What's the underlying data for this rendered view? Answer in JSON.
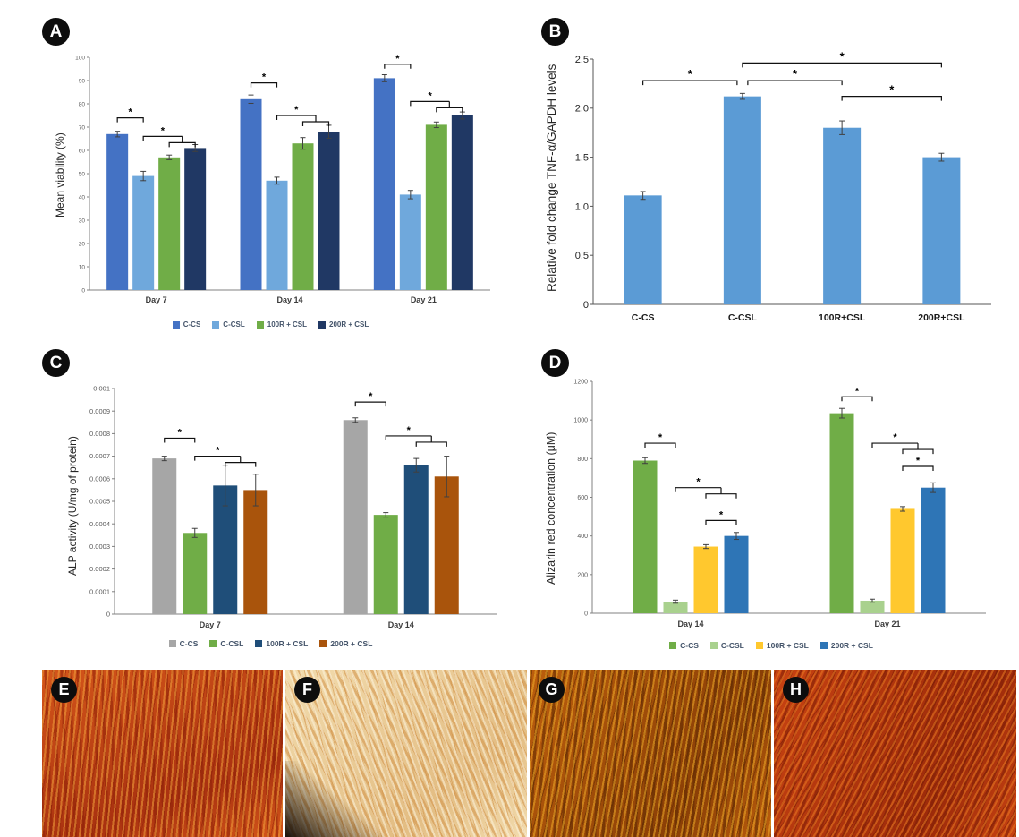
{
  "figure": {
    "panels": [
      {
        "id": "A",
        "badge": "A"
      },
      {
        "id": "B",
        "badge": "B"
      },
      {
        "id": "C",
        "badge": "C"
      },
      {
        "id": "D",
        "badge": "D"
      }
    ]
  },
  "chart_data": [
    {
      "type": "bar",
      "panel": "A",
      "ylabel": "Mean viability (%)",
      "xlabel": "",
      "ylim": [
        0,
        100
      ],
      "ytick_values": [
        0,
        10,
        20,
        30,
        40,
        50,
        60,
        70,
        80,
        90,
        100
      ],
      "ytick_labels": [
        "0",
        "10",
        "20",
        "30",
        "40",
        "50",
        "60",
        "70",
        "80",
        "90",
        "100"
      ],
      "categories": [
        "Day 7",
        "Day 14",
        "Day 21"
      ],
      "series": [
        {
          "name": "C-CS",
          "color": "#4472C4",
          "values": [
            67,
            82,
            91
          ],
          "errors": [
            1.2,
            1.8,
            1.5
          ]
        },
        {
          "name": "C-CSL",
          "color": "#6FA8DC",
          "values": [
            49,
            47,
            41
          ],
          "errors": [
            2.0,
            1.5,
            1.8
          ]
        },
        {
          "name": "100R + CSL",
          "color": "#70AD47",
          "values": [
            57,
            63,
            71
          ],
          "errors": [
            1.0,
            2.5,
            1.2
          ]
        },
        {
          "name": "200R + CSL",
          "color": "#203864",
          "values": [
            61,
            68,
            75
          ],
          "errors": [
            1.5,
            2.8,
            1.5
          ]
        }
      ],
      "annotations": [
        {
          "group": 0,
          "from": 0,
          "to": 1,
          "y": 74,
          "label": "*"
        },
        {
          "group": 0,
          "from": 1,
          "to": [
            2,
            3
          ],
          "y": 66,
          "label": "*"
        },
        {
          "group": 1,
          "from": 0,
          "to": 1,
          "y": 89,
          "label": "*"
        },
        {
          "group": 1,
          "from": 1,
          "to": [
            2,
            3
          ],
          "y": 75,
          "label": "*"
        },
        {
          "group": 2,
          "from": 0,
          "to": 1,
          "y": 97,
          "label": "*"
        },
        {
          "group": 2,
          "from": 1,
          "to": [
            2,
            3
          ],
          "y": 81,
          "label": "*"
        }
      ],
      "legend_position": "bottom",
      "grid": false
    },
    {
      "type": "bar",
      "panel": "B",
      "ylabel": "Relative fold change TNF-α/GAPDH levels",
      "xlabel": "",
      "ylim": [
        0,
        2.5
      ],
      "ytick_values": [
        0,
        0.5,
        1,
        1.5,
        2,
        2.5
      ],
      "ytick_labels": [
        "0",
        "0.5",
        "1.0",
        "1.5",
        "2.0",
        "2.5"
      ],
      "categories": [
        "C-CS",
        "C-CSL",
        "100R+CSL",
        "200R+CSL"
      ],
      "series": [
        {
          "name": "",
          "color": "#5B9BD5",
          "values": [
            1.11,
            2.12,
            1.8,
            1.5
          ],
          "errors": [
            0.04,
            0.03,
            0.07,
            0.04
          ]
        }
      ],
      "annotations": [
        {
          "group": -1,
          "from": 0,
          "to": 1,
          "y": 2.28,
          "label": "*",
          "dx2": -6
        },
        {
          "group": -1,
          "from": 1,
          "to": 2,
          "y": 2.28,
          "label": "*",
          "dx1": 6
        },
        {
          "group": -1,
          "from": 1,
          "to": 3,
          "y": 2.46,
          "label": "*"
        },
        {
          "group": -1,
          "from": 2,
          "to": 3,
          "y": 2.12,
          "label": "*"
        }
      ],
      "legend_position": "none",
      "grid": false
    },
    {
      "type": "bar",
      "panel": "C",
      "ylabel": "ALP activity (U/mg of protein)",
      "xlabel": "",
      "ylim": [
        0,
        0.001
      ],
      "ytick_values": [
        0,
        0.0001,
        0.0002,
        0.0003,
        0.0004,
        0.0005,
        0.0006,
        0.0007,
        0.0008,
        0.0009,
        0.001
      ],
      "ytick_labels": [
        "0",
        "0.0001",
        "0.0002",
        "0.0003",
        "0.0004",
        "0.0005",
        "0.0006",
        "0.0007",
        "0.0008",
        "0.0009",
        "0.001"
      ],
      "categories": [
        "Day 7",
        "Day 14"
      ],
      "series": [
        {
          "name": "C-CS",
          "color": "#A6A6A6",
          "values": [
            0.00069,
            0.00086
          ],
          "errors": [
            1e-05,
            1e-05
          ]
        },
        {
          "name": "C-CSL",
          "color": "#70AD47",
          "values": [
            0.00036,
            0.00044
          ],
          "errors": [
            2e-05,
            1e-05
          ]
        },
        {
          "name": "100R + CSL",
          "color": "#1F4E79",
          "values": [
            0.00057,
            0.00066
          ],
          "errors": [
            9e-05,
            3e-05
          ]
        },
        {
          "name": "200R + CSL",
          "color": "#A9540C",
          "values": [
            0.00055,
            0.00061
          ],
          "errors": [
            7e-05,
            9e-05
          ]
        }
      ],
      "annotations": [
        {
          "group": 0,
          "from": 0,
          "to": 1,
          "y": 0.00078,
          "label": "*"
        },
        {
          "group": 0,
          "from": 1,
          "to": [
            2,
            3
          ],
          "y": 0.0007,
          "label": "*"
        },
        {
          "group": 1,
          "from": 0,
          "to": 1,
          "y": 0.00094,
          "label": "*"
        },
        {
          "group": 1,
          "from": 1,
          "to": [
            2,
            3
          ],
          "y": 0.00079,
          "label": "*"
        }
      ],
      "legend_position": "bottom",
      "grid": false
    },
    {
      "type": "bar",
      "panel": "D",
      "ylabel": "Alizarin red concentration (μM)",
      "xlabel": "",
      "ylim": [
        0,
        1200
      ],
      "ytick_values": [
        0,
        200,
        400,
        600,
        800,
        1000,
        1200
      ],
      "ytick_labels": [
        "0",
        "200",
        "400",
        "600",
        "800",
        "1000",
        "1200"
      ],
      "categories": [
        "Day 14",
        "Day 21"
      ],
      "series": [
        {
          "name": "C-CS",
          "color": "#70AD47",
          "values": [
            790,
            1035
          ],
          "errors": [
            15,
            25
          ]
        },
        {
          "name": "C-CSL",
          "color": "#A9D18E",
          "values": [
            60,
            65
          ],
          "errors": [
            8,
            8
          ]
        },
        {
          "name": "100R + CSL",
          "color": "#FFC82E",
          "values": [
            345,
            540
          ],
          "errors": [
            10,
            12
          ]
        },
        {
          "name": "200R + CSL",
          "color": "#2E75B6",
          "values": [
            400,
            650
          ],
          "errors": [
            18,
            25
          ]
        }
      ],
      "annotations": [
        {
          "group": 0,
          "from": 0,
          "to": 1,
          "y": 880,
          "label": "*"
        },
        {
          "group": 0,
          "from": 1,
          "to": [
            2,
            3
          ],
          "y": 650,
          "label": "*"
        },
        {
          "group": 0,
          "from": 2,
          "to": 3,
          "y": 480,
          "label": "*"
        },
        {
          "group": 1,
          "from": 0,
          "to": 1,
          "y": 1120,
          "label": "*"
        },
        {
          "group": 1,
          "from": 1,
          "to": [
            2,
            3
          ],
          "y": 880,
          "label": "*"
        },
        {
          "group": 1,
          "from": 2,
          "to": 3,
          "y": 760,
          "label": "*"
        }
      ],
      "legend_position": "bottom",
      "grid": false
    }
  ],
  "micrographs": [
    {
      "id": "E",
      "badge": "E",
      "palette": {
        "base": "#d4561a",
        "deep": "#a93110",
        "streak": "#8f2208",
        "highlight": "#f0a13c"
      }
    },
    {
      "id": "F",
      "badge": "F",
      "palette": {
        "base": "#f2dcae",
        "deep": "#e3bd83",
        "streak": "#d29349",
        "highlight": "#fdf4dd"
      }
    },
    {
      "id": "G",
      "badge": "G",
      "palette": {
        "base": "#bc5e0d",
        "deep": "#8a3f06",
        "streak": "#5e2a03",
        "highlight": "#edaa28"
      }
    },
    {
      "id": "H",
      "badge": "H",
      "palette": {
        "base": "#c84312",
        "deep": "#9c2a0a",
        "streak": "#7c1d06",
        "highlight": "#e87a22"
      }
    }
  ]
}
